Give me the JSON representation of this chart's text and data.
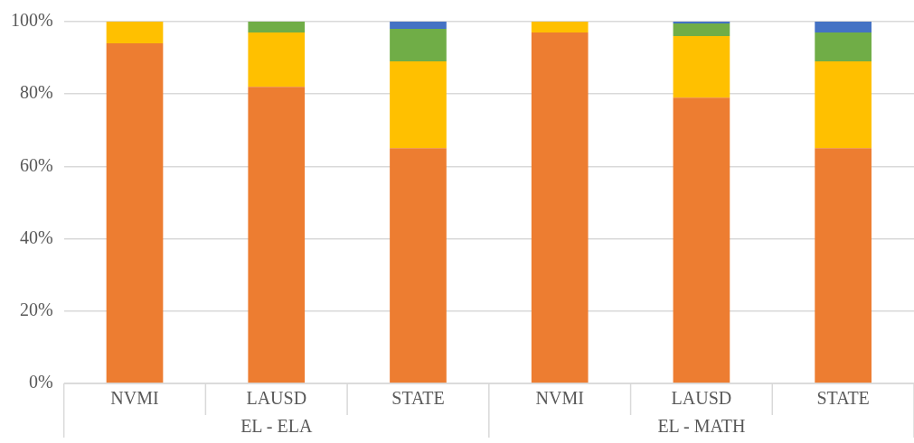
{
  "chart_data": {
    "type": "bar",
    "stacked": true,
    "categories": [
      "NVMI",
      "LAUSD",
      "STATE",
      "NVMI",
      "LAUSD",
      "STATE"
    ],
    "annotations": [
      "EL - ELA",
      "EL - MATH"
    ],
    "series": [
      {
        "color": "#ed7d31",
        "values": [
          94,
          82,
          65,
          97,
          79,
          65
        ]
      },
      {
        "color": "#ffc000",
        "values": [
          6,
          15,
          24,
          3,
          17,
          24
        ]
      },
      {
        "color": "#70ad47",
        "values": [
          0,
          3,
          9,
          0,
          3.5,
          8
        ]
      },
      {
        "color": "#4472c4",
        "values": [
          0,
          0,
          2,
          0,
          0.5,
          3
        ]
      }
    ],
    "ylim": [
      0,
      100
    ],
    "yticks": [
      {
        "value": 0,
        "label": "0%"
      },
      {
        "value": 20,
        "label": "20%"
      },
      {
        "value": 40,
        "label": "40%"
      },
      {
        "value": 60,
        "label": "60%"
      },
      {
        "value": 80,
        "label": "80%"
      },
      {
        "value": 100,
        "label": "100%"
      }
    ],
    "grid": "y"
  }
}
